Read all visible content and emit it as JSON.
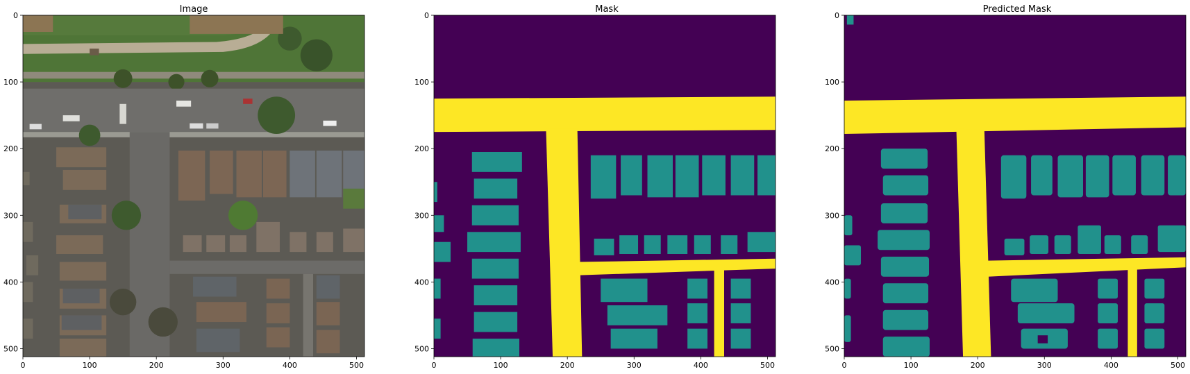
{
  "panels": [
    {
      "title": "Image",
      "x_ticks": [
        "0",
        "100",
        "200",
        "300",
        "400",
        "500"
      ],
      "y_ticks": [
        "0",
        "100",
        "200",
        "300",
        "400",
        "500"
      ]
    },
    {
      "title": "Mask",
      "x_ticks": [
        "0",
        "100",
        "200",
        "300",
        "400",
        "500"
      ],
      "y_ticks": [
        "0",
        "100",
        "200",
        "300",
        "400",
        "500"
      ]
    },
    {
      "title": "Predicted Mask",
      "x_ticks": [
        "0",
        "100",
        "200",
        "300",
        "400",
        "500"
      ],
      "y_ticks": [
        "0",
        "100",
        "200",
        "300",
        "400",
        "500"
      ]
    }
  ],
  "axis_range": {
    "x": [
      0,
      512
    ],
    "y": [
      0,
      512
    ]
  },
  "colors": {
    "background_class": "#440154",
    "building_class": "#21918c",
    "road_class": "#fde725"
  }
}
